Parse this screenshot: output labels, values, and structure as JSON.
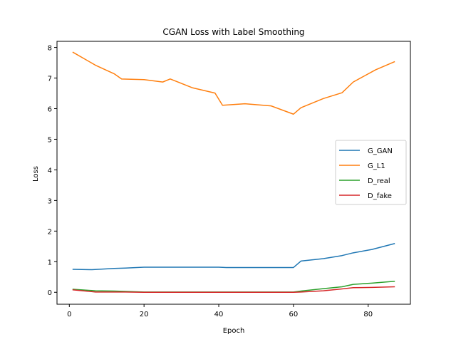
{
  "chart_data": {
    "type": "line",
    "title": "CGAN Loss with Label Smoothing",
    "xlabel": "Epoch",
    "ylabel": "Loss",
    "xlim": [
      -3.3,
      91.3
    ],
    "ylim": [
      -0.39,
      8.2
    ],
    "xticks": [
      0,
      20,
      40,
      60,
      80
    ],
    "yticks": [
      0,
      1,
      2,
      3,
      4,
      5,
      6,
      7,
      8
    ],
    "grid": false,
    "legend_position": "center-right",
    "series": [
      {
        "name": "G_GAN",
        "color": "#1f77b4",
        "x": [
          1,
          6,
          12,
          15,
          20,
          25,
          30,
          35,
          40,
          42,
          45,
          50,
          55,
          60,
          62,
          68,
          73,
          76,
          81,
          87
        ],
        "y": [
          0.75,
          0.74,
          0.78,
          0.79,
          0.82,
          0.82,
          0.82,
          0.82,
          0.82,
          0.81,
          0.81,
          0.81,
          0.81,
          0.81,
          1.02,
          1.1,
          1.2,
          1.29,
          1.4,
          1.59
        ]
      },
      {
        "name": "G_L1",
        "color": "#ff7f0e",
        "x": [
          1,
          7,
          12,
          14,
          20,
          25,
          27,
          33,
          39,
          41,
          47,
          54,
          60,
          62,
          68,
          73,
          76,
          82,
          87
        ],
        "y": [
          7.84,
          7.42,
          7.14,
          6.97,
          6.95,
          6.87,
          6.97,
          6.68,
          6.51,
          6.11,
          6.16,
          6.09,
          5.82,
          6.03,
          6.33,
          6.52,
          6.87,
          7.27,
          7.53
        ]
      },
      {
        "name": "D_real",
        "color": "#2ca02c",
        "x": [
          1,
          7,
          12,
          15,
          20,
          25,
          30,
          35,
          40,
          45,
          50,
          55,
          60,
          62,
          68,
          73,
          76,
          81,
          87
        ],
        "y": [
          0.1,
          0.05,
          0.04,
          0.03,
          0.01,
          0.01,
          0.01,
          0.01,
          0.01,
          0.01,
          0.01,
          0.01,
          0.01,
          0.04,
          0.12,
          0.18,
          0.26,
          0.3,
          0.36
        ]
      },
      {
        "name": "D_fake",
        "color": "#d62728",
        "x": [
          1,
          7,
          12,
          15,
          20,
          25,
          30,
          35,
          40,
          45,
          50,
          55,
          60,
          62,
          68,
          73,
          76,
          81,
          87
        ],
        "y": [
          0.08,
          0.01,
          0.01,
          0.01,
          0.0,
          0.0,
          0.0,
          0.0,
          0.0,
          0.0,
          0.0,
          0.0,
          0.0,
          0.01,
          0.05,
          0.11,
          0.15,
          0.16,
          0.18
        ]
      }
    ]
  }
}
